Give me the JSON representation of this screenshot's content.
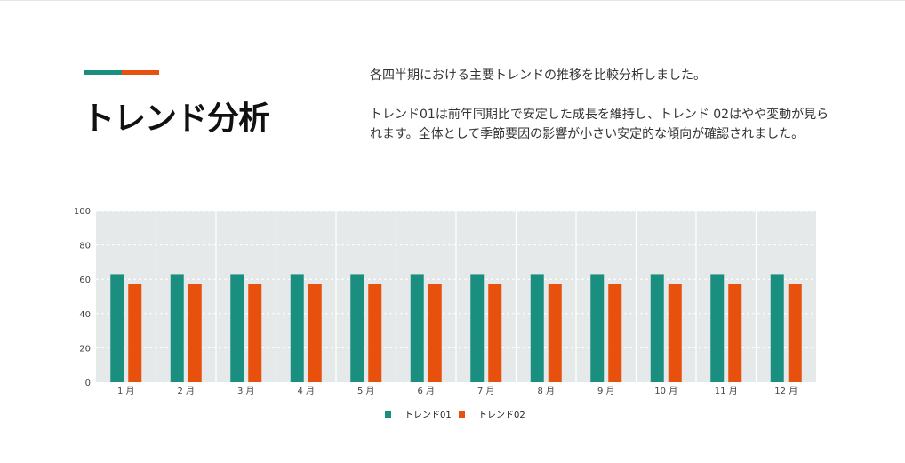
{
  "header": {
    "title": "トレンド分析",
    "description_lines": [
      "各四半期における主要トレンドの推移を比較分析しました。",
      "トレンド01は前年同期比で安定した成長を維持し、トレンド 02はやや変動が見られます。全体として季節要因の影響が小さい安定的な傾向が確認されました。"
    ]
  },
  "colors": {
    "accent_left": "#1b8f7f",
    "accent_right": "#e8500e",
    "plot_bg": "#e6e9ea",
    "series1": "#1b8f7f",
    "series2": "#e8500e"
  },
  "chart_data": {
    "type": "bar",
    "categories": [
      "1 月",
      "2 月",
      "3 月",
      "4 月",
      "5 月",
      "6 月",
      "7 月",
      "8 月",
      "9 月",
      "10 月",
      "11 月",
      "12 月"
    ],
    "series": [
      {
        "name": "トレンド01",
        "values": [
          63,
          63,
          63,
          63,
          63,
          63,
          63,
          63,
          63,
          63,
          63,
          63
        ]
      },
      {
        "name": "トレンド02",
        "values": [
          57,
          57,
          57,
          57,
          57,
          57,
          57,
          57,
          57,
          57,
          57,
          57
        ]
      }
    ],
    "yticks": [
      0,
      20,
      40,
      60,
      80,
      100
    ],
    "ylim": [
      0,
      100
    ],
    "legend_position": "bottom-center",
    "grid": true
  }
}
